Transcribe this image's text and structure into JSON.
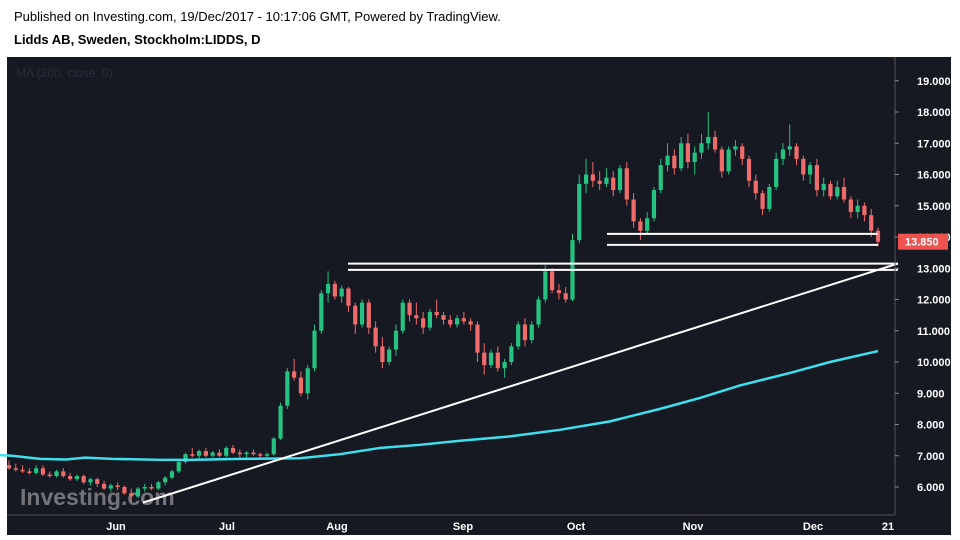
{
  "header": {
    "published": "Published on Investing.com, 19/Dec/2017 - 10:17:06 GMT, Powered by TradingView.",
    "symbol": "Lidds AB, Sweden, Stockholm:LIDDS, D"
  },
  "indicator_label": "MA (200, close, 0)",
  "watermark": "Investing.com",
  "colors": {
    "background": "#161822",
    "up": "#26c281",
    "down": "#f06b6b",
    "ma": "#3ee0ee",
    "lines": "#ffffff",
    "price_tag": "#ef5350"
  },
  "chart_data": {
    "type": "candlestick",
    "y_ticks": [
      "6.000",
      "7.000",
      "8.000",
      "9.000",
      "10.000",
      "11.000",
      "12.000",
      "13.000",
      "14.000",
      "15.000",
      "16.000",
      "17.000",
      "18.000",
      "19.000"
    ],
    "x_ticks": [
      "Jun",
      "Jul",
      "Aug",
      "Sep",
      "Oct",
      "Nov",
      "Dec",
      "21"
    ],
    "ylim": [
      5,
      19.3
    ],
    "last_price": "13.850",
    "ohlc": [
      [
        6.7,
        6.85,
        6.55,
        6.6
      ],
      [
        6.6,
        6.75,
        6.5,
        6.55
      ],
      [
        6.55,
        6.7,
        6.45,
        6.5
      ],
      [
        6.5,
        6.6,
        6.4,
        6.45
      ],
      [
        6.45,
        6.7,
        6.4,
        6.6
      ],
      [
        6.6,
        6.7,
        6.35,
        6.4
      ],
      [
        6.4,
        6.5,
        6.3,
        6.35
      ],
      [
        6.35,
        6.55,
        6.3,
        6.5
      ],
      [
        6.5,
        6.6,
        6.3,
        6.35
      ],
      [
        6.35,
        6.45,
        6.2,
        6.25
      ],
      [
        6.25,
        6.4,
        6.2,
        6.35
      ],
      [
        6.35,
        6.4,
        6.1,
        6.15
      ],
      [
        6.15,
        6.3,
        6.05,
        6.25
      ],
      [
        6.25,
        6.3,
        6.0,
        6.1
      ],
      [
        6.1,
        6.2,
        5.9,
        5.95
      ],
      [
        5.95,
        6.1,
        5.85,
        6.05
      ],
      [
        6.05,
        6.15,
        5.9,
        6.0
      ],
      [
        6.0,
        6.05,
        5.75,
        5.8
      ],
      [
        5.8,
        5.95,
        5.55,
        5.7
      ],
      [
        5.7,
        6.0,
        5.65,
        5.95
      ],
      [
        5.95,
        6.1,
        5.85,
        6.0
      ],
      [
        6.0,
        6.1,
        5.9,
        5.95
      ],
      [
        5.95,
        6.2,
        5.9,
        6.15
      ],
      [
        6.15,
        6.35,
        6.05,
        6.3
      ],
      [
        6.3,
        6.55,
        6.25,
        6.5
      ],
      [
        6.5,
        6.85,
        6.45,
        6.8
      ],
      [
        6.8,
        7.1,
        6.75,
        7.05
      ],
      [
        7.05,
        7.25,
        6.95,
        7.0
      ],
      [
        7.0,
        7.2,
        6.9,
        7.15
      ],
      [
        7.15,
        7.25,
        6.95,
        7.0
      ],
      [
        7.0,
        7.15,
        6.95,
        7.1
      ],
      [
        7.1,
        7.2,
        6.95,
        7.0
      ],
      [
        7.0,
        7.3,
        6.95,
        7.25
      ],
      [
        7.25,
        7.35,
        7.05,
        7.1
      ],
      [
        7.1,
        7.2,
        6.95,
        7.05
      ],
      [
        7.05,
        7.15,
        6.9,
        7.1
      ],
      [
        7.1,
        7.2,
        7.0,
        7.05
      ],
      [
        7.05,
        7.1,
        6.9,
        7.0
      ],
      [
        7.0,
        7.1,
        6.95,
        7.05
      ],
      [
        7.05,
        7.6,
        7.0,
        7.55
      ],
      [
        7.55,
        8.7,
        7.5,
        8.6
      ],
      [
        8.6,
        9.8,
        8.5,
        9.7
      ],
      [
        9.7,
        10.1,
        9.4,
        9.5
      ],
      [
        9.5,
        9.7,
        8.9,
        9.0
      ],
      [
        9.0,
        9.9,
        8.8,
        9.8
      ],
      [
        9.8,
        11.2,
        9.7,
        11.0
      ],
      [
        11.0,
        12.3,
        10.9,
        12.2
      ],
      [
        12.2,
        12.9,
        11.9,
        12.5
      ],
      [
        12.5,
        12.6,
        12.0,
        12.1
      ],
      [
        12.1,
        12.45,
        11.9,
        12.35
      ],
      [
        12.35,
        12.4,
        11.6,
        11.8
      ],
      [
        11.8,
        11.9,
        10.9,
        11.2
      ],
      [
        11.2,
        12.0,
        11.1,
        11.9
      ],
      [
        11.9,
        12.0,
        10.9,
        11.1
      ],
      [
        11.1,
        11.3,
        10.3,
        10.5
      ],
      [
        10.5,
        10.8,
        9.8,
        10.0
      ],
      [
        10.0,
        10.5,
        9.9,
        10.4
      ],
      [
        10.4,
        11.2,
        10.2,
        11.0
      ],
      [
        11.0,
        12.0,
        10.9,
        11.9
      ],
      [
        11.9,
        12.0,
        11.3,
        11.5
      ],
      [
        11.5,
        11.9,
        11.2,
        11.4
      ],
      [
        11.4,
        11.6,
        10.9,
        11.1
      ],
      [
        11.1,
        11.7,
        11.0,
        11.6
      ],
      [
        11.6,
        12.0,
        11.4,
        11.5
      ],
      [
        11.5,
        11.6,
        11.2,
        11.35
      ],
      [
        11.35,
        11.5,
        11.1,
        11.2
      ],
      [
        11.2,
        11.5,
        11.1,
        11.4
      ],
      [
        11.4,
        11.6,
        11.2,
        11.3
      ],
      [
        11.3,
        11.4,
        11.0,
        11.2
      ],
      [
        11.2,
        11.3,
        10.0,
        10.3
      ],
      [
        10.3,
        10.6,
        9.6,
        9.9
      ],
      [
        9.9,
        10.4,
        9.8,
        10.3
      ],
      [
        10.3,
        10.5,
        9.7,
        9.8
      ],
      [
        9.8,
        10.1,
        9.5,
        10.0
      ],
      [
        10.0,
        10.6,
        9.9,
        10.5
      ],
      [
        10.5,
        11.3,
        10.4,
        11.2
      ],
      [
        11.2,
        11.4,
        10.5,
        10.7
      ],
      [
        10.7,
        11.3,
        10.6,
        11.2
      ],
      [
        11.2,
        12.1,
        11.1,
        12.0
      ],
      [
        12.0,
        13.1,
        11.9,
        12.9
      ],
      [
        12.9,
        13.0,
        12.2,
        12.3
      ],
      [
        12.3,
        12.5,
        12.0,
        12.2
      ],
      [
        12.2,
        12.4,
        11.9,
        12.0
      ],
      [
        12.0,
        14.1,
        11.95,
        13.9
      ],
      [
        13.9,
        16.0,
        13.8,
        15.7
      ],
      [
        15.7,
        16.5,
        15.4,
        16.0
      ],
      [
        16.0,
        16.4,
        15.6,
        15.8
      ],
      [
        15.8,
        16.1,
        15.5,
        15.7
      ],
      [
        15.7,
        16.2,
        15.6,
        15.9
      ],
      [
        15.9,
        16.1,
        15.3,
        15.5
      ],
      [
        15.5,
        16.3,
        15.4,
        16.2
      ],
      [
        16.2,
        16.4,
        15.0,
        15.2
      ],
      [
        15.2,
        15.4,
        14.3,
        14.5
      ],
      [
        14.5,
        14.6,
        13.9,
        14.2
      ],
      [
        14.2,
        14.8,
        14.1,
        14.6
      ],
      [
        14.6,
        15.6,
        14.5,
        15.5
      ],
      [
        15.5,
        16.5,
        15.4,
        16.3
      ],
      [
        16.3,
        17.0,
        16.1,
        16.6
      ],
      [
        16.6,
        16.8,
        16.0,
        16.2
      ],
      [
        16.2,
        17.2,
        16.1,
        17.0
      ],
      [
        17.0,
        17.3,
        16.2,
        16.4
      ],
      [
        16.4,
        16.9,
        16.0,
        16.7
      ],
      [
        16.7,
        17.3,
        16.5,
        17.0
      ],
      [
        17.0,
        18.0,
        16.8,
        17.2
      ],
      [
        17.2,
        17.4,
        16.7,
        16.8
      ],
      [
        16.8,
        16.9,
        15.9,
        16.1
      ],
      [
        16.1,
        16.9,
        16.0,
        16.8
      ],
      [
        16.8,
        17.1,
        16.6,
        16.9
      ],
      [
        16.9,
        17.0,
        16.3,
        16.5
      ],
      [
        16.5,
        16.6,
        15.6,
        15.8
      ],
      [
        15.8,
        16.0,
        15.2,
        15.4
      ],
      [
        15.4,
        15.5,
        14.7,
        14.9
      ],
      [
        14.9,
        15.7,
        14.8,
        15.6
      ],
      [
        15.6,
        16.7,
        15.5,
        16.5
      ],
      [
        16.5,
        17.0,
        16.3,
        16.8
      ],
      [
        16.8,
        17.6,
        16.6,
        16.9
      ],
      [
        16.9,
        17.0,
        16.3,
        16.5
      ],
      [
        16.5,
        16.6,
        15.8,
        16.0
      ],
      [
        16.0,
        16.4,
        15.7,
        16.3
      ],
      [
        16.3,
        16.5,
        15.3,
        15.5
      ],
      [
        15.5,
        15.9,
        15.3,
        15.7
      ],
      [
        15.7,
        15.8,
        15.2,
        15.3
      ],
      [
        15.3,
        15.8,
        15.2,
        15.6
      ],
      [
        15.6,
        15.9,
        15.1,
        15.2
      ],
      [
        15.2,
        15.3,
        14.6,
        14.8
      ],
      [
        14.8,
        15.2,
        14.6,
        15.0
      ],
      [
        15.0,
        15.1,
        14.5,
        14.7
      ],
      [
        14.7,
        14.9,
        14.0,
        14.2
      ],
      [
        14.2,
        14.3,
        13.7,
        13.85
      ]
    ],
    "moving_average": {
      "name": "MA (200, close, 0)",
      "points": [
        [
          0,
          7.02
        ],
        [
          12,
          7.0
        ],
        [
          40,
          6.9
        ],
        [
          66,
          6.88
        ],
        [
          85,
          6.94
        ],
        [
          112,
          6.9
        ],
        [
          160,
          6.87
        ],
        [
          190,
          6.87
        ],
        [
          240,
          6.9
        ],
        [
          300,
          6.92
        ],
        [
          340,
          7.05
        ],
        [
          380,
          7.25
        ],
        [
          420,
          7.35
        ],
        [
          460,
          7.48
        ],
        [
          510,
          7.62
        ],
        [
          560,
          7.83
        ],
        [
          610,
          8.1
        ],
        [
          660,
          8.5
        ],
        [
          700,
          8.85
        ],
        [
          740,
          9.25
        ],
        [
          790,
          9.65
        ],
        [
          830,
          10.0
        ],
        [
          878,
          10.35
        ]
      ]
    },
    "trendlines": [
      {
        "from": [
          143,
          5.5
        ],
        "to": [
          898,
          13.15
        ]
      },
      {
        "from": [
          348,
          13.15
        ],
        "to": [
          898,
          13.15
        ]
      },
      {
        "from": [
          348,
          12.95
        ],
        "to": [
          898,
          12.95
        ]
      },
      {
        "from": [
          607,
          14.1
        ],
        "to": [
          878,
          14.1
        ]
      },
      {
        "from": [
          607,
          13.75
        ],
        "to": [
          878,
          13.75
        ]
      }
    ]
  }
}
